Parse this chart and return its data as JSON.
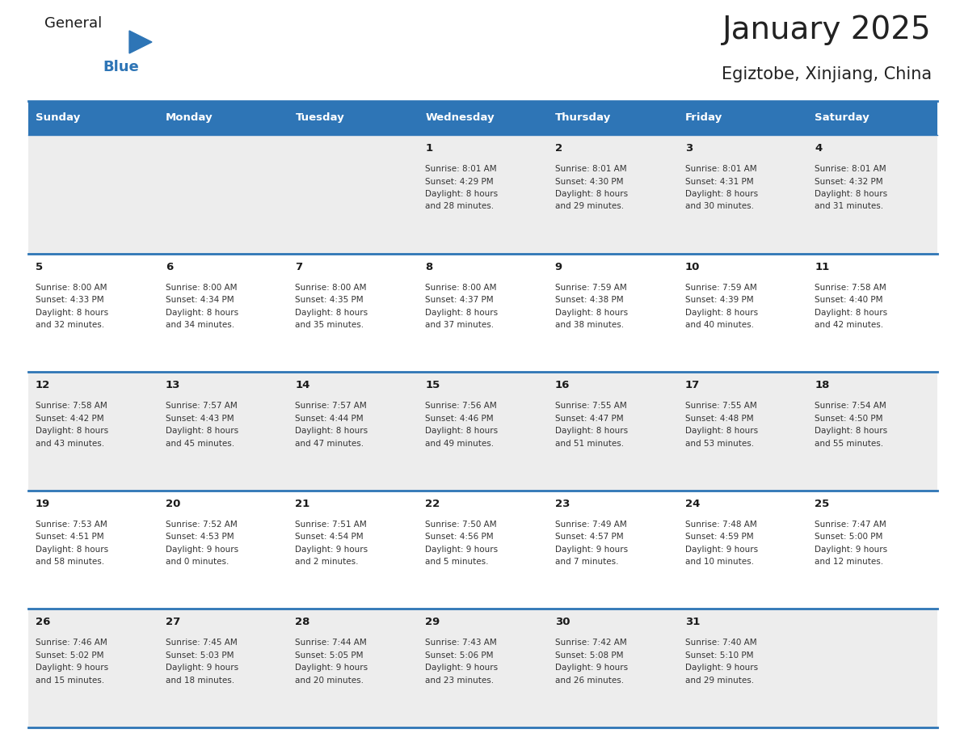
{
  "title": "January 2025",
  "subtitle": "Egiztobe, Xinjiang, China",
  "days_of_week": [
    "Sunday",
    "Monday",
    "Tuesday",
    "Wednesday",
    "Thursday",
    "Friday",
    "Saturday"
  ],
  "header_bg": "#2E75B6",
  "header_text": "#FFFFFF",
  "row_bg_odd": "#EDEDED",
  "row_bg_even": "#FFFFFF",
  "border_color": "#2E75B6",
  "title_color": "#222222",
  "subtitle_color": "#222222",
  "blue_color": "#2E75B6",
  "calendar_data": [
    [
      null,
      null,
      null,
      {
        "day": 1,
        "sunrise": "8:01 AM",
        "sunset": "4:29 PM",
        "daylight": "8 hours",
        "daylight2": "and 28 minutes."
      },
      {
        "day": 2,
        "sunrise": "8:01 AM",
        "sunset": "4:30 PM",
        "daylight": "8 hours",
        "daylight2": "and 29 minutes."
      },
      {
        "day": 3,
        "sunrise": "8:01 AM",
        "sunset": "4:31 PM",
        "daylight": "8 hours",
        "daylight2": "and 30 minutes."
      },
      {
        "day": 4,
        "sunrise": "8:01 AM",
        "sunset": "4:32 PM",
        "daylight": "8 hours",
        "daylight2": "and 31 minutes."
      }
    ],
    [
      {
        "day": 5,
        "sunrise": "8:00 AM",
        "sunset": "4:33 PM",
        "daylight": "8 hours",
        "daylight2": "and 32 minutes."
      },
      {
        "day": 6,
        "sunrise": "8:00 AM",
        "sunset": "4:34 PM",
        "daylight": "8 hours",
        "daylight2": "and 34 minutes."
      },
      {
        "day": 7,
        "sunrise": "8:00 AM",
        "sunset": "4:35 PM",
        "daylight": "8 hours",
        "daylight2": "and 35 minutes."
      },
      {
        "day": 8,
        "sunrise": "8:00 AM",
        "sunset": "4:37 PM",
        "daylight": "8 hours",
        "daylight2": "and 37 minutes."
      },
      {
        "day": 9,
        "sunrise": "7:59 AM",
        "sunset": "4:38 PM",
        "daylight": "8 hours",
        "daylight2": "and 38 minutes."
      },
      {
        "day": 10,
        "sunrise": "7:59 AM",
        "sunset": "4:39 PM",
        "daylight": "8 hours",
        "daylight2": "and 40 minutes."
      },
      {
        "day": 11,
        "sunrise": "7:58 AM",
        "sunset": "4:40 PM",
        "daylight": "8 hours",
        "daylight2": "and 42 minutes."
      }
    ],
    [
      {
        "day": 12,
        "sunrise": "7:58 AM",
        "sunset": "4:42 PM",
        "daylight": "8 hours",
        "daylight2": "and 43 minutes."
      },
      {
        "day": 13,
        "sunrise": "7:57 AM",
        "sunset": "4:43 PM",
        "daylight": "8 hours",
        "daylight2": "and 45 minutes."
      },
      {
        "day": 14,
        "sunrise": "7:57 AM",
        "sunset": "4:44 PM",
        "daylight": "8 hours",
        "daylight2": "and 47 minutes."
      },
      {
        "day": 15,
        "sunrise": "7:56 AM",
        "sunset": "4:46 PM",
        "daylight": "8 hours",
        "daylight2": "and 49 minutes."
      },
      {
        "day": 16,
        "sunrise": "7:55 AM",
        "sunset": "4:47 PM",
        "daylight": "8 hours",
        "daylight2": "and 51 minutes."
      },
      {
        "day": 17,
        "sunrise": "7:55 AM",
        "sunset": "4:48 PM",
        "daylight": "8 hours",
        "daylight2": "and 53 minutes."
      },
      {
        "day": 18,
        "sunrise": "7:54 AM",
        "sunset": "4:50 PM",
        "daylight": "8 hours",
        "daylight2": "and 55 minutes."
      }
    ],
    [
      {
        "day": 19,
        "sunrise": "7:53 AM",
        "sunset": "4:51 PM",
        "daylight": "8 hours",
        "daylight2": "and 58 minutes."
      },
      {
        "day": 20,
        "sunrise": "7:52 AM",
        "sunset": "4:53 PM",
        "daylight": "9 hours",
        "daylight2": "and 0 minutes."
      },
      {
        "day": 21,
        "sunrise": "7:51 AM",
        "sunset": "4:54 PM",
        "daylight": "9 hours",
        "daylight2": "and 2 minutes."
      },
      {
        "day": 22,
        "sunrise": "7:50 AM",
        "sunset": "4:56 PM",
        "daylight": "9 hours",
        "daylight2": "and 5 minutes."
      },
      {
        "day": 23,
        "sunrise": "7:49 AM",
        "sunset": "4:57 PM",
        "daylight": "9 hours",
        "daylight2": "and 7 minutes."
      },
      {
        "day": 24,
        "sunrise": "7:48 AM",
        "sunset": "4:59 PM",
        "daylight": "9 hours",
        "daylight2": "and 10 minutes."
      },
      {
        "day": 25,
        "sunrise": "7:47 AM",
        "sunset": "5:00 PM",
        "daylight": "9 hours",
        "daylight2": "and 12 minutes."
      }
    ],
    [
      {
        "day": 26,
        "sunrise": "7:46 AM",
        "sunset": "5:02 PM",
        "daylight": "9 hours",
        "daylight2": "and 15 minutes."
      },
      {
        "day": 27,
        "sunrise": "7:45 AM",
        "sunset": "5:03 PM",
        "daylight": "9 hours",
        "daylight2": "and 18 minutes."
      },
      {
        "day": 28,
        "sunrise": "7:44 AM",
        "sunset": "5:05 PM",
        "daylight": "9 hours",
        "daylight2": "and 20 minutes."
      },
      {
        "day": 29,
        "sunrise": "7:43 AM",
        "sunset": "5:06 PM",
        "daylight": "9 hours",
        "daylight2": "and 23 minutes."
      },
      {
        "day": 30,
        "sunrise": "7:42 AM",
        "sunset": "5:08 PM",
        "daylight": "9 hours",
        "daylight2": "and 26 minutes."
      },
      {
        "day": 31,
        "sunrise": "7:40 AM",
        "sunset": "5:10 PM",
        "daylight": "9 hours",
        "daylight2": "and 29 minutes."
      },
      null
    ]
  ]
}
